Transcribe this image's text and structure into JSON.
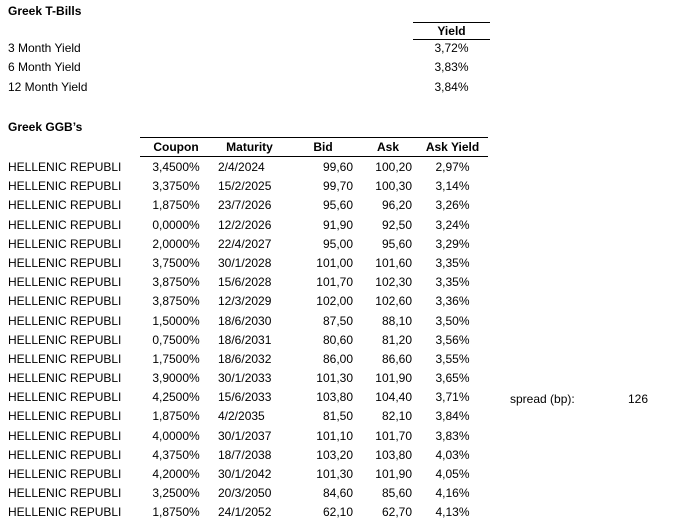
{
  "tbills": {
    "title": "Greek T-Bills",
    "yield_header": "Yield",
    "rows": [
      {
        "label": "3 Month Yield",
        "value": "3,72%"
      },
      {
        "label": "6 Month Yield",
        "value": "3,83%"
      },
      {
        "label": "12 Month Yield",
        "value": "3,84%"
      }
    ]
  },
  "ggbs": {
    "title": "Greek GGB’s",
    "columns": {
      "coupon": "Coupon",
      "maturity": "Maturity",
      "bid": "Bid",
      "ask": "Ask",
      "ask_yield": "Ask Yield"
    },
    "rows": [
      {
        "name": "HELLENIC REPUBLI",
        "coupon": "3,4500%",
        "maturity": "2/4/2024",
        "bid": "99,60",
        "ask": "100,20",
        "ask_yield": "2,97%"
      },
      {
        "name": "HELLENIC REPUBLI",
        "coupon": "3,3750%",
        "maturity": "15/2/2025",
        "bid": "99,70",
        "ask": "100,30",
        "ask_yield": "3,14%"
      },
      {
        "name": "HELLENIC REPUBLI",
        "coupon": "1,8750%",
        "maturity": "23/7/2026",
        "bid": "95,60",
        "ask": "96,20",
        "ask_yield": "3,26%"
      },
      {
        "name": "HELLENIC REPUBLI",
        "coupon": "0,0000%",
        "maturity": "12/2/2026",
        "bid": "91,90",
        "ask": "92,50",
        "ask_yield": "3,24%"
      },
      {
        "name": "HELLENIC REPUBLI",
        "coupon": "2,0000%",
        "maturity": "22/4/2027",
        "bid": "95,00",
        "ask": "95,60",
        "ask_yield": "3,29%"
      },
      {
        "name": "HELLENIC REPUBLI",
        "coupon": "3,7500%",
        "maturity": "30/1/2028",
        "bid": "101,00",
        "ask": "101,60",
        "ask_yield": "3,35%"
      },
      {
        "name": "HELLENIC REPUBLI",
        "coupon": "3,8750%",
        "maturity": "15/6/2028",
        "bid": "101,70",
        "ask": "102,30",
        "ask_yield": "3,35%"
      },
      {
        "name": "HELLENIC REPUBLI",
        "coupon": "3,8750%",
        "maturity": "12/3/2029",
        "bid": "102,00",
        "ask": "102,60",
        "ask_yield": "3,36%"
      },
      {
        "name": "HELLENIC REPUBLI",
        "coupon": "1,5000%",
        "maturity": "18/6/2030",
        "bid": "87,50",
        "ask": "88,10",
        "ask_yield": "3,50%"
      },
      {
        "name": "HELLENIC REPUBLI",
        "coupon": "0,7500%",
        "maturity": "18/6/2031",
        "bid": "80,60",
        "ask": "81,20",
        "ask_yield": "3,56%"
      },
      {
        "name": "HELLENIC REPUBLI",
        "coupon": "1,7500%",
        "maturity": "18/6/2032",
        "bid": "86,00",
        "ask": "86,60",
        "ask_yield": "3,55%"
      },
      {
        "name": "HELLENIC REPUBLI",
        "coupon": "3,9000%",
        "maturity": "30/1/2033",
        "bid": "101,30",
        "ask": "101,90",
        "ask_yield": "3,65%"
      },
      {
        "name": "HELLENIC REPUBLI",
        "coupon": "4,2500%",
        "maturity": "15/6/2033",
        "bid": "103,80",
        "ask": "104,40",
        "ask_yield": "3,71%"
      },
      {
        "name": "HELLENIC REPUBLI",
        "coupon": "1,8750%",
        "maturity": "4/2/2035",
        "bid": "81,50",
        "ask": "82,10",
        "ask_yield": "3,84%"
      },
      {
        "name": "HELLENIC REPUBLI",
        "coupon": "4,0000%",
        "maturity": "30/1/2037",
        "bid": "101,10",
        "ask": "101,70",
        "ask_yield": "3,83%"
      },
      {
        "name": "HELLENIC REPUBLI",
        "coupon": "4,3750%",
        "maturity": "18/7/2038",
        "bid": "103,20",
        "ask": "103,80",
        "ask_yield": "4,03%"
      },
      {
        "name": "HELLENIC REPUBLI",
        "coupon": "4,2000%",
        "maturity": "30/1/2042",
        "bid": "101,30",
        "ask": "101,90",
        "ask_yield": "4,05%"
      },
      {
        "name": "HELLENIC REPUBLI",
        "coupon": "3,2500%",
        "maturity": "20/3/2050",
        "bid": "84,60",
        "ask": "85,60",
        "ask_yield": "4,16%"
      },
      {
        "name": "HELLENIC REPUBLI",
        "coupon": "1,8750%",
        "maturity": "24/1/2052",
        "bid": "62,10",
        "ask": "62,70",
        "ask_yield": "4,13%"
      }
    ]
  },
  "spread": {
    "label": "spread (bp):",
    "value": "126"
  }
}
